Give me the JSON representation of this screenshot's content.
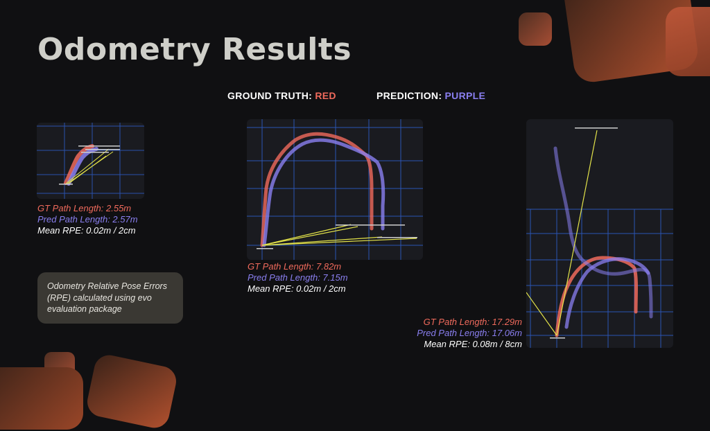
{
  "slide": {
    "title": "Odometry Results",
    "legend": {
      "gt_label": "GROUND TRUTH:",
      "gt_color_name": "RED",
      "pred_label": "PREDICTION:",
      "pred_color_name": "PURPLE"
    },
    "colors": {
      "background": "#101012",
      "gt": "#f06a5c",
      "pred": "#8a7ff0",
      "accent": "#c0583a",
      "grid": "#2f5fd0"
    },
    "results": [
      {
        "gt_length": "GT Path Length: 2.55m",
        "pred_length": "Pred Path Length: 2.57m",
        "rpe": "Mean RPE: 0.02m / 2cm"
      },
      {
        "gt_length": "GT Path Length: 7.82m",
        "pred_length": "Pred Path Length: 7.15m",
        "rpe": "Mean RPE: 0.02m / 2cm"
      },
      {
        "gt_length": "GT Path Length: 17.29m",
        "pred_length": "Pred Path Length: 17.06m",
        "rpe": "Mean RPE: 0.08m / 8cm"
      }
    ],
    "note": "Odometry Relative Pose Errors (RPE) calculated using evo evaluation package"
  }
}
